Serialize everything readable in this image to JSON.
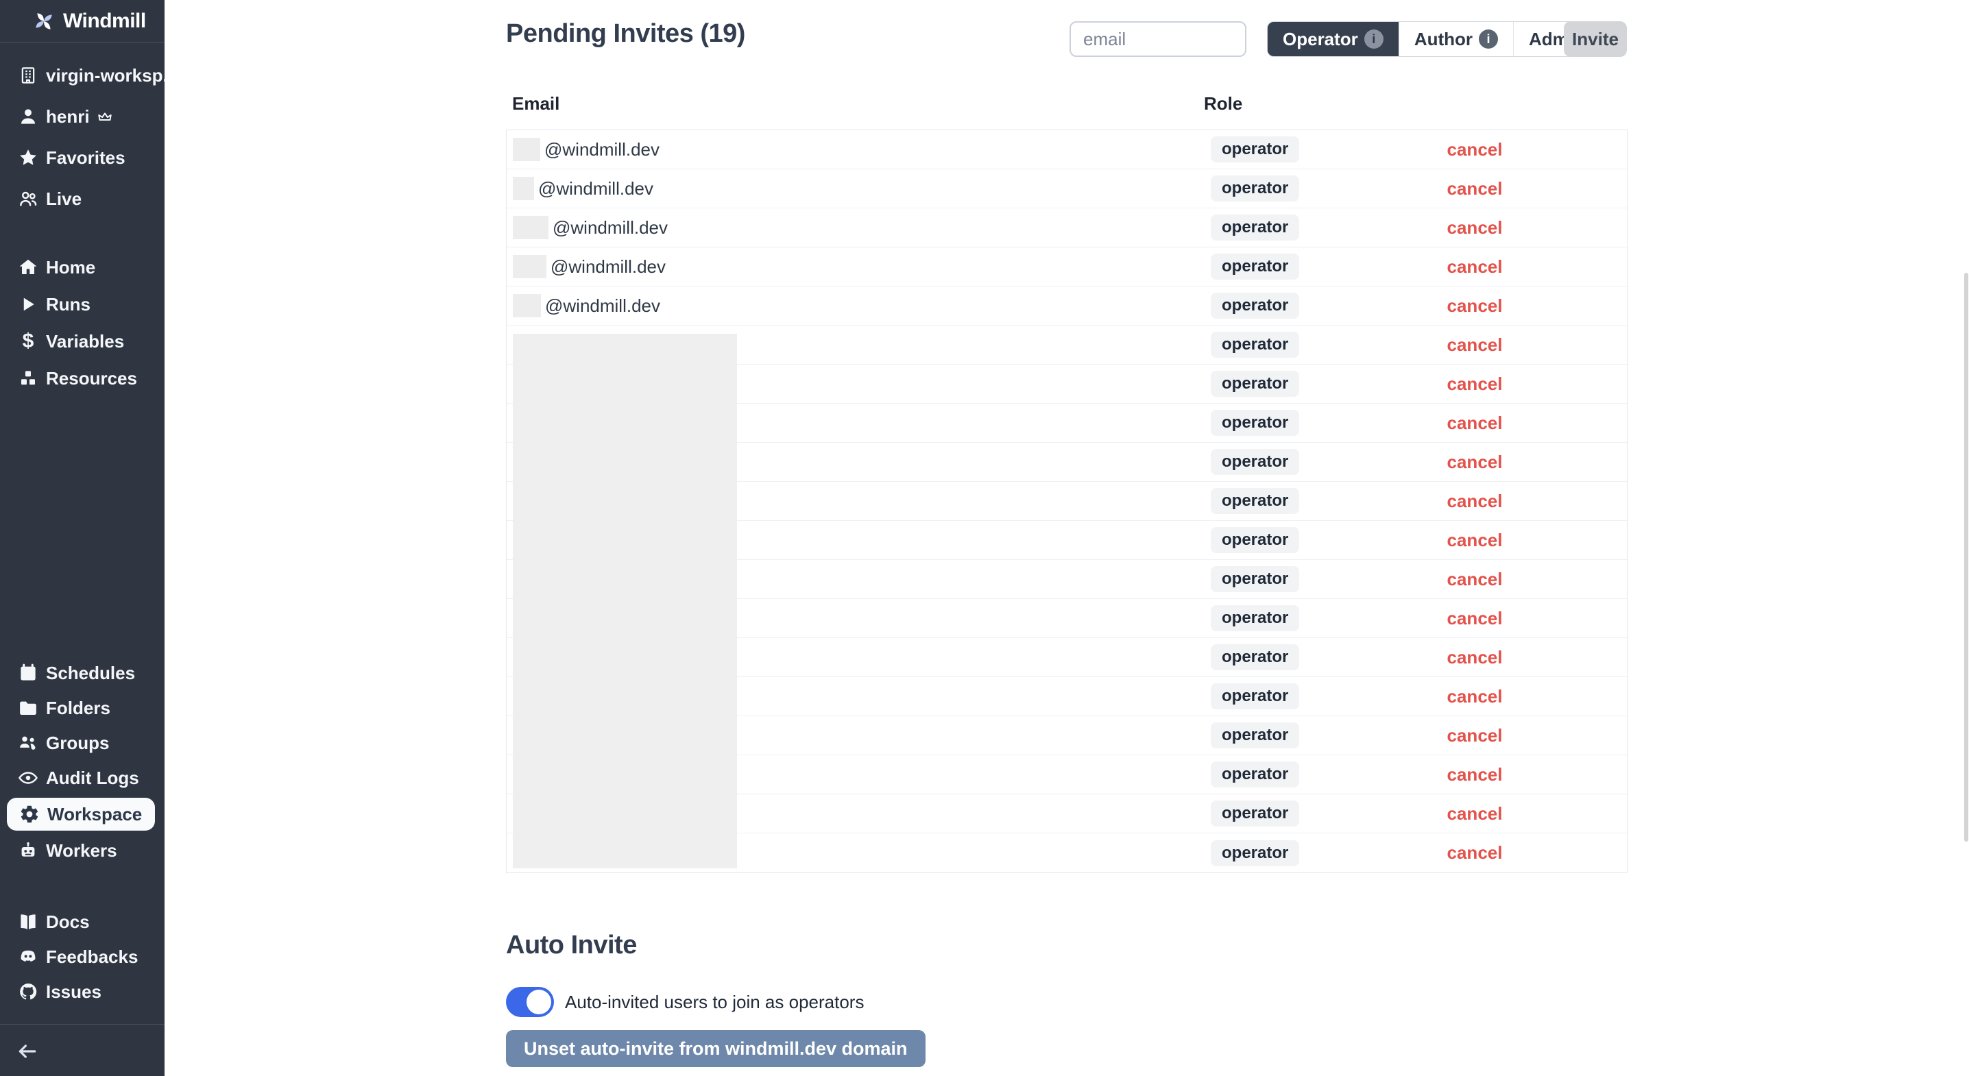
{
  "sidebar": {
    "logo": "Windmill",
    "workspace_items": [
      {
        "id": "workspace-switcher",
        "icon": "building-icon",
        "label": "virgin-worksp..."
      },
      {
        "id": "user-menu",
        "icon": "user-icon",
        "label": "henri",
        "trailing": "crown-icon"
      },
      {
        "id": "favorites",
        "icon": "star-icon",
        "label": "Favorites"
      },
      {
        "id": "live",
        "icon": "people-icon",
        "label": "Live"
      }
    ],
    "nav_items": [
      {
        "id": "home",
        "icon": "home-icon",
        "label": "Home"
      },
      {
        "id": "runs",
        "icon": "play-icon",
        "label": "Runs"
      },
      {
        "id": "variables",
        "icon": "dollar-icon",
        "label": "Variables"
      },
      {
        "id": "resources",
        "icon": "cubes-icon",
        "label": "Resources"
      }
    ],
    "admin_items": [
      {
        "id": "schedules",
        "icon": "calendar-icon",
        "label": "Schedules"
      },
      {
        "id": "folders",
        "icon": "folder-icon",
        "label": "Folders"
      },
      {
        "id": "groups",
        "icon": "groups-icon",
        "label": "Groups"
      },
      {
        "id": "audit-logs",
        "icon": "eye-icon",
        "label": "Audit Logs"
      },
      {
        "id": "workspace",
        "icon": "gear-icon",
        "label": "Workspace",
        "active": true
      },
      {
        "id": "workers",
        "icon": "robot-icon",
        "label": "Workers"
      }
    ],
    "footer_items": [
      {
        "id": "docs",
        "icon": "book-icon",
        "label": "Docs"
      },
      {
        "id": "feedbacks",
        "icon": "discord-icon",
        "label": "Feedbacks"
      },
      {
        "id": "issues",
        "icon": "github-icon",
        "label": "Issues"
      }
    ],
    "collapse_icon": "arrow-left-icon"
  },
  "header": {
    "title": "Pending Invites (19)",
    "email_placeholder": "email",
    "role_options": [
      {
        "label": "Operator",
        "selected": true,
        "info": true
      },
      {
        "label": "Author",
        "selected": false,
        "info": true
      },
      {
        "label": "Admin",
        "selected": false,
        "info": false
      }
    ],
    "invite_label": "Invite"
  },
  "invites_table": {
    "columns": [
      "Email",
      "Role"
    ],
    "rows": [
      {
        "email": "@windmill.dev",
        "masked": "username",
        "mask_width": 40,
        "role": "operator",
        "action": "cancel"
      },
      {
        "email": "@windmill.dev",
        "masked": "username",
        "mask_width": 31,
        "role": "operator",
        "action": "cancel"
      },
      {
        "email": "@windmill.dev",
        "masked": "username",
        "mask_width": 52,
        "role": "operator",
        "action": "cancel"
      },
      {
        "email": "@windmill.dev",
        "masked": "username",
        "mask_width": 49,
        "role": "operator",
        "action": "cancel"
      },
      {
        "email": "@windmill.dev",
        "masked": "username",
        "mask_width": 41,
        "role": "operator",
        "action": "cancel"
      },
      {
        "email": "",
        "masked": "full",
        "role": "operator",
        "action": "cancel"
      },
      {
        "email": "",
        "masked": "full",
        "role": "operator",
        "action": "cancel"
      },
      {
        "email": "",
        "masked": "full",
        "role": "operator",
        "action": "cancel"
      },
      {
        "email": "",
        "masked": "full",
        "role": "operator",
        "action": "cancel"
      },
      {
        "email": "",
        "masked": "full",
        "role": "operator",
        "action": "cancel"
      },
      {
        "email": "",
        "masked": "full",
        "role": "operator",
        "action": "cancel"
      },
      {
        "email": "",
        "masked": "full",
        "role": "operator",
        "action": "cancel"
      },
      {
        "email": "",
        "masked": "full",
        "role": "operator",
        "action": "cancel"
      },
      {
        "email": "",
        "masked": "full",
        "role": "operator",
        "action": "cancel"
      },
      {
        "email": "",
        "masked": "full",
        "role": "operator",
        "action": "cancel"
      },
      {
        "email": "",
        "masked": "full",
        "role": "operator",
        "action": "cancel"
      },
      {
        "email": "",
        "masked": "full",
        "role": "operator",
        "action": "cancel"
      },
      {
        "email": "",
        "masked": "full",
        "role": "operator",
        "action": "cancel"
      },
      {
        "email": "",
        "masked": "full",
        "role": "operator",
        "action": "cancel"
      }
    ]
  },
  "auto_invite": {
    "title": "Auto Invite",
    "toggle_on": true,
    "toggle_label": "Auto-invited users to join as operators",
    "unset_button_label": "Unset auto-invite from windmill.dev domain"
  },
  "colors": {
    "sidebar_bg": "#2f3642",
    "segment_selected_bg": "#36404f",
    "accent_blue": "#3b68e8",
    "cancel_red": "#e3524b",
    "unset_button_bg": "#6d88aa"
  }
}
